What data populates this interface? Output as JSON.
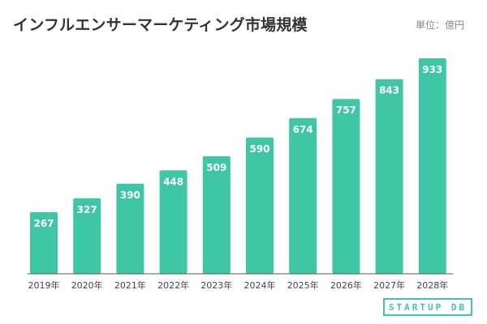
{
  "chart_data": {
    "type": "bar",
    "title": "インフルエンサーマーケティング市場規模",
    "unit_label": "単位：億円",
    "categories": [
      "2019年",
      "2020年",
      "2021年",
      "2022年",
      "2023年",
      "2024年",
      "2025年",
      "2026年",
      "2027年",
      "2028年"
    ],
    "values": [
      267,
      327,
      390,
      448,
      509,
      590,
      674,
      757,
      843,
      933
    ],
    "ylim": [
      0,
      933
    ],
    "grid": false,
    "bar_color": "#3ec6a6",
    "label_color": "#ffffff"
  },
  "branding": {
    "logo_text": "STARTUP DB"
  }
}
